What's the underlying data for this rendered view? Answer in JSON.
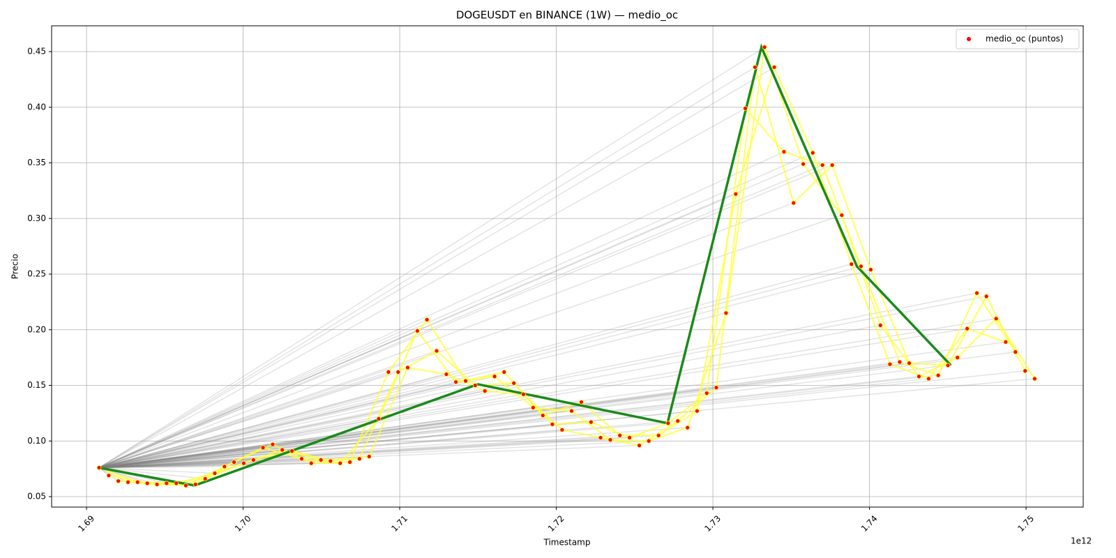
{
  "chart_data": {
    "type": "scatter",
    "title": "DOGEUSDT en BINANCE (1W) — medio_oc",
    "x_label": "Timestamp",
    "x_offset": "1e12",
    "y_label": "Precio",
    "legend_loc": "upper right",
    "grid": true,
    "xlim": [
      1.68777,
      1.75365
    ],
    "ylim": [
      0.0406,
      0.4732
    ],
    "xticks": [
      1.69,
      {
        "value": 1.7,
        "label": "1.70"
      },
      1.71,
      1.72,
      1.73,
      1.74,
      1.75
    ],
    "yticks": [
      0.05,
      {
        "value": 0.1,
        "label": "0.10"
      },
      0.15,
      {
        "value": 0.2,
        "label": "0.20"
      },
      0.25,
      {
        "value": 0.3,
        "label": "0.30"
      },
      0.35,
      {
        "value": 0.4,
        "label": "0.40"
      },
      0.45
    ],
    "series": [
      {
        "name": "medio_oc (puntos)",
        "color": "#ff0000",
        "x": [
          1.6908,
          1.69142,
          1.69203,
          1.69265,
          1.69326,
          1.69388,
          1.6945,
          1.69511,
          1.69573,
          1.69634,
          1.69696,
          1.69758,
          1.69819,
          1.69881,
          1.69942,
          1.70004,
          1.70066,
          1.70127,
          1.70189,
          1.7025,
          1.70312,
          1.70374,
          1.70435,
          1.70497,
          1.70558,
          1.7062,
          1.70682,
          1.70743,
          1.70805,
          1.70866,
          1.70928,
          1.7099,
          1.71051,
          1.71113,
          1.71174,
          1.71236,
          1.71298,
          1.71359,
          1.71421,
          1.71482,
          1.71544,
          1.71606,
          1.71667,
          1.71729,
          1.7179,
          1.71852,
          1.71914,
          1.71975,
          1.72037,
          1.72098,
          1.7216,
          1.72222,
          1.72283,
          1.72345,
          1.72406,
          1.72468,
          1.7253,
          1.72591,
          1.72653,
          1.72714,
          1.72776,
          1.72838,
          1.72899,
          1.72961,
          1.73022,
          1.73084,
          1.73146,
          1.73207,
          1.73269,
          1.7333,
          1.73392,
          1.73454,
          1.73515,
          1.73577,
          1.73638,
          1.737,
          1.73762,
          1.73823,
          1.73885,
          1.73946,
          1.74008,
          1.7407,
          1.74131,
          1.74193,
          1.74254,
          1.74316,
          1.74378,
          1.74439,
          1.74501,
          1.74562,
          1.74624,
          1.74686,
          1.74747,
          1.74809,
          1.7487,
          1.74932,
          1.74994,
          1.75055
        ],
        "values": [
          0.076,
          0.069,
          0.064,
          0.063,
          0.063,
          0.062,
          0.061,
          0.062,
          0.062,
          0.06,
          0.061,
          0.066,
          0.071,
          0.077,
          0.081,
          0.08,
          0.083,
          0.094,
          0.097,
          0.092,
          0.091,
          0.084,
          0.08,
          0.083,
          0.082,
          0.08,
          0.081,
          0.084,
          0.086,
          0.12,
          0.162,
          0.162,
          0.166,
          0.199,
          0.209,
          0.181,
          0.16,
          0.153,
          0.154,
          0.15,
          0.145,
          0.158,
          0.162,
          0.152,
          0.142,
          0.13,
          0.123,
          0.115,
          0.11,
          0.127,
          0.135,
          0.117,
          0.103,
          0.101,
          0.105,
          0.103,
          0.096,
          0.1,
          0.105,
          0.116,
          0.118,
          0.112,
          0.127,
          0.143,
          0.148,
          0.215,
          0.322,
          0.399,
          0.436,
          0.454,
          0.436,
          0.36,
          0.314,
          0.349,
          0.359,
          0.348,
          0.348,
          0.303,
          0.259,
          0.257,
          0.254,
          0.204,
          0.169,
          0.171,
          0.17,
          0.158,
          0.156,
          0.159,
          0.168,
          0.175,
          0.201,
          0.233,
          0.23,
          0.21,
          0.189,
          0.18,
          0.163,
          0.156
        ]
      }
    ],
    "trend": {
      "color": "#1a8a1a",
      "x": [
        1.6908,
        1.6969,
        1.715,
        1.7271,
        1.7331,
        1.7392,
        1.7452
      ],
      "y": [
        0.076,
        0.06,
        0.151,
        0.116,
        0.454,
        0.257,
        0.168
      ]
    },
    "link_color": "#ffff33",
    "fan_color": "#808080"
  }
}
